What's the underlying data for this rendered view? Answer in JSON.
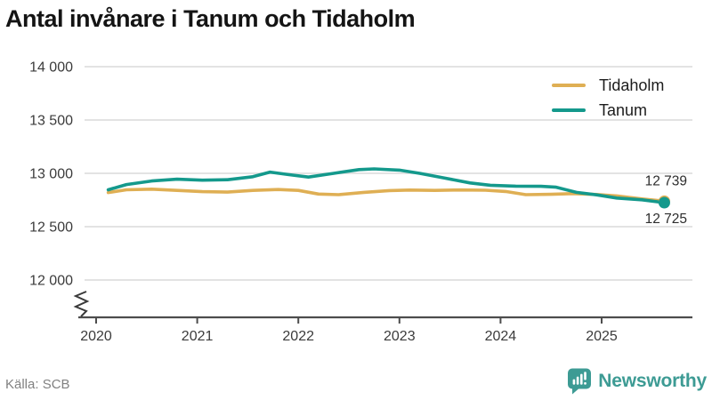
{
  "header": {
    "title": "Antal invånare i Tanum och Tidaholm"
  },
  "footer": {
    "source": "Källa: SCB",
    "brand": "Newsworthy",
    "brand_color": "#3D9B94"
  },
  "chart_data": {
    "type": "line",
    "title": "Antal invånare i Tanum och Tidaholm",
    "grid": true,
    "legend_position": "top-right",
    "colors": {
      "grid": "#e3e3e3",
      "axis": "#4d4d4d",
      "tick_text": "#3b3b3b",
      "value_label": "#2d2d2d"
    },
    "x_axis": {
      "ticks": [
        2020,
        2021,
        2022,
        2023,
        2024,
        2025
      ],
      "break_marker": true
    },
    "y_axis": {
      "range": [
        12000,
        14000
      ],
      "ticks": [
        {
          "value": 14000,
          "label": "14 000"
        },
        {
          "value": 13500,
          "label": "13 500"
        },
        {
          "value": 13000,
          "label": "13 000"
        },
        {
          "value": 12500,
          "label": "12 500"
        },
        {
          "value": 12000,
          "label": "12 000"
        }
      ]
    },
    "series": [
      {
        "name": "Tidaholm",
        "color": "#DFAF54",
        "end_label": "12 739",
        "end_label_side": "above",
        "points": [
          [
            2020.12,
            12820
          ],
          [
            2020.3,
            12846
          ],
          [
            2020.55,
            12852
          ],
          [
            2020.8,
            12840
          ],
          [
            2021.05,
            12828
          ],
          [
            2021.3,
            12824
          ],
          [
            2021.55,
            12840
          ],
          [
            2021.8,
            12848
          ],
          [
            2022.0,
            12840
          ],
          [
            2022.2,
            12806
          ],
          [
            2022.4,
            12800
          ],
          [
            2022.65,
            12822
          ],
          [
            2022.9,
            12838
          ],
          [
            2023.1,
            12843
          ],
          [
            2023.35,
            12840
          ],
          [
            2023.6,
            12844
          ],
          [
            2023.85,
            12842
          ],
          [
            2024.05,
            12830
          ],
          [
            2024.25,
            12800
          ],
          [
            2024.5,
            12803
          ],
          [
            2024.72,
            12810
          ],
          [
            2024.95,
            12802
          ],
          [
            2025.15,
            12788
          ],
          [
            2025.4,
            12760
          ],
          [
            2025.62,
            12739
          ]
        ]
      },
      {
        "name": "Tanum",
        "color": "#14998C",
        "end_label": "12 725",
        "end_label_side": "below",
        "points": [
          [
            2020.12,
            12846
          ],
          [
            2020.3,
            12895
          ],
          [
            2020.55,
            12928
          ],
          [
            2020.8,
            12945
          ],
          [
            2021.05,
            12936
          ],
          [
            2021.3,
            12940
          ],
          [
            2021.55,
            12968
          ],
          [
            2021.72,
            13012
          ],
          [
            2021.9,
            12988
          ],
          [
            2022.1,
            12965
          ],
          [
            2022.35,
            13000
          ],
          [
            2022.6,
            13035
          ],
          [
            2022.75,
            13042
          ],
          [
            2023.0,
            13030
          ],
          [
            2023.2,
            13000
          ],
          [
            2023.45,
            12955
          ],
          [
            2023.7,
            12910
          ],
          [
            2023.9,
            12888
          ],
          [
            2024.15,
            12880
          ],
          [
            2024.4,
            12878
          ],
          [
            2024.55,
            12870
          ],
          [
            2024.75,
            12822
          ],
          [
            2024.95,
            12798
          ],
          [
            2025.15,
            12768
          ],
          [
            2025.4,
            12752
          ],
          [
            2025.62,
            12725
          ]
        ]
      }
    ]
  }
}
